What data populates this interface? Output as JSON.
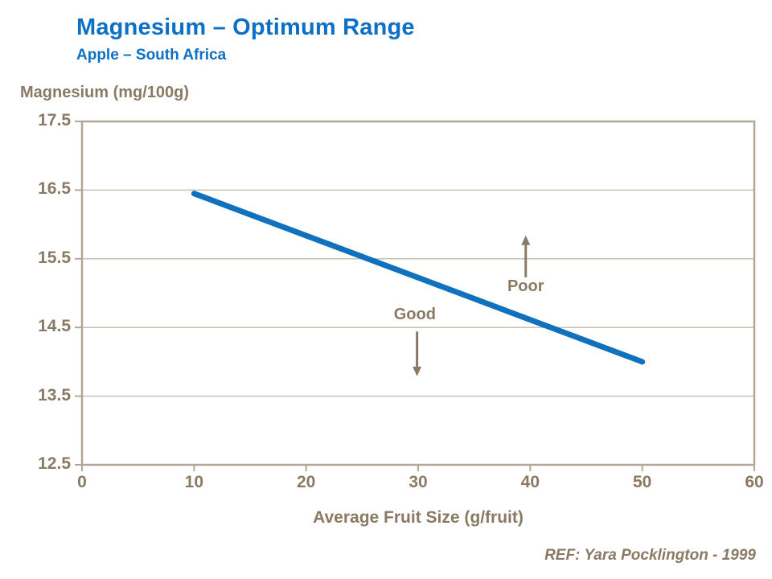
{
  "header": {
    "title": "Magnesium – Optimum Range",
    "subtitle": "Apple – South Africa"
  },
  "chart_data": {
    "type": "line",
    "y_axis_title": "Magnesium (mg/100g)",
    "x_axis_title": "Average Fruit Size (g/fruit)",
    "xlim": [
      0,
      60
    ],
    "ylim": [
      12.5,
      17.5
    ],
    "xticks": [
      0,
      10,
      20,
      30,
      40,
      50,
      60
    ],
    "yticks": [
      12.5,
      13.5,
      14.5,
      15.5,
      16.5,
      17.5
    ],
    "grid": "horizontal",
    "legend": "none",
    "series": [
      {
        "name": "optimum-range",
        "color": "#1171bd",
        "points": [
          [
            10,
            16.45
          ],
          [
            50,
            14.0
          ]
        ]
      }
    ],
    "annotations": [
      {
        "label": "Good",
        "x": 29.7,
        "y": 14.67,
        "arrow": {
          "x": 29.9,
          "from": 14.44,
          "to": 13.79,
          "direction": "down"
        }
      },
      {
        "label": "Poor",
        "x": 39.6,
        "y": 15.08,
        "arrow": {
          "x": 39.6,
          "from": 15.23,
          "to": 15.84,
          "direction": "up"
        }
      }
    ]
  },
  "footer": {
    "reference": "REF: Yara Pocklington - 1999"
  },
  "colors": {
    "title_blue": "#0d70c5",
    "line_blue": "#1171bd",
    "text_taupe": "#8a7a64",
    "axis_taupe": "#b2a797",
    "grid_taupe": "#c9c0b0"
  }
}
